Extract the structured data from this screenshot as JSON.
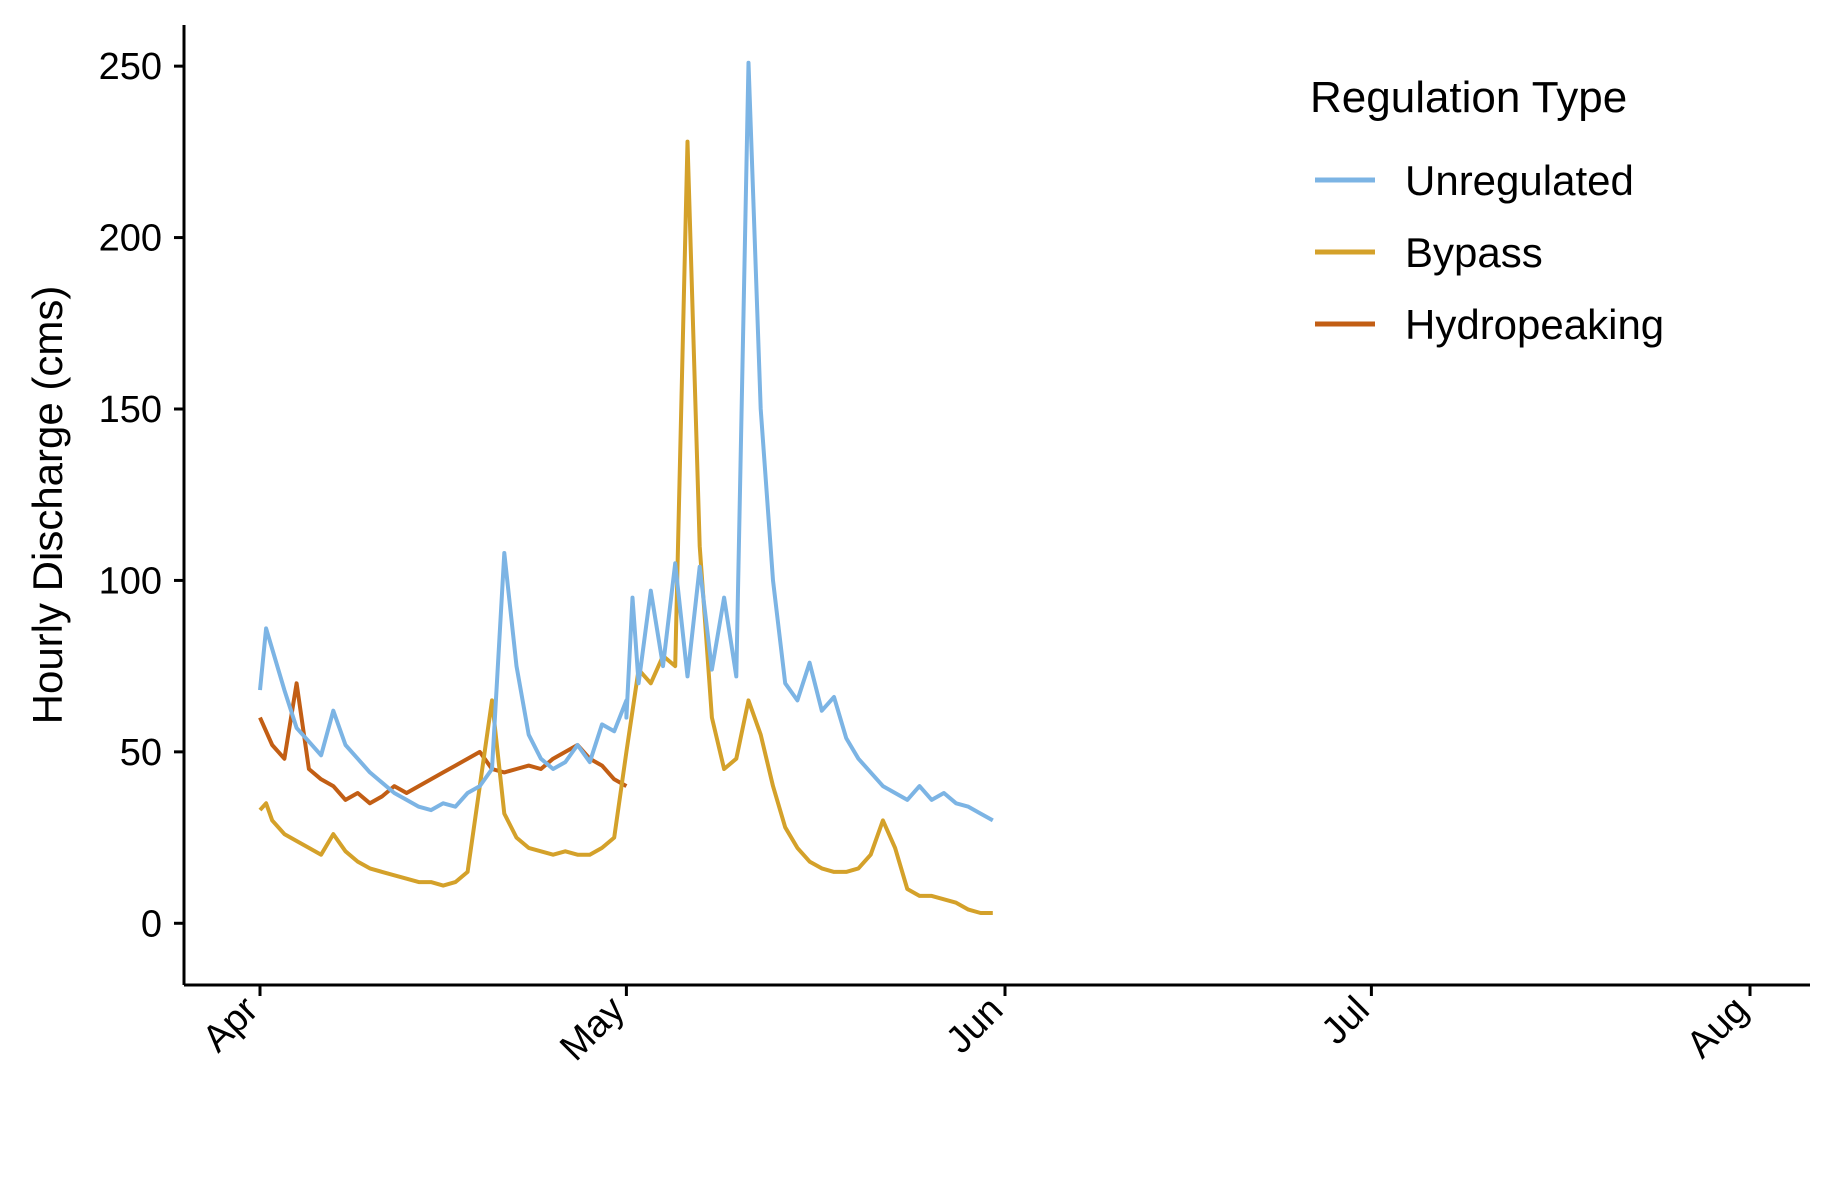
{
  "chart_data": {
    "type": "line",
    "title": "",
    "xlabel": "",
    "ylabel": "Hourly Discharge (cms)",
    "xlim": [
      "2019-04-01",
      "2019-08-01"
    ],
    "ylim": [
      -18,
      262
    ],
    "x_ticks": [
      {
        "date": "2019-04-01",
        "label": "Apr"
      },
      {
        "date": "2019-05-01",
        "label": "May"
      },
      {
        "date": "2019-06-01",
        "label": "Jun"
      },
      {
        "date": "2019-07-01",
        "label": "Jul"
      },
      {
        "date": "2019-08-01",
        "label": "Aug"
      }
    ],
    "y_ticks": [
      0,
      50,
      100,
      150,
      200,
      250
    ],
    "grid": false,
    "legend": {
      "title": "Regulation Type",
      "position": "top-right"
    },
    "series": [
      {
        "name": "Unregulated",
        "color": "#7cb4e4",
        "points": [
          [
            "2019-04-01",
            68
          ],
          [
            "2019-04-01 12:00",
            86
          ],
          [
            "2019-04-02",
            80
          ],
          [
            "2019-04-03",
            68
          ],
          [
            "2019-04-04",
            57
          ],
          [
            "2019-04-05",
            53
          ],
          [
            "2019-04-06",
            49
          ],
          [
            "2019-04-07",
            62
          ],
          [
            "2019-04-08",
            52
          ],
          [
            "2019-04-09",
            48
          ],
          [
            "2019-04-10",
            44
          ],
          [
            "2019-04-11",
            41
          ],
          [
            "2019-04-12",
            38
          ],
          [
            "2019-04-13",
            36
          ],
          [
            "2019-04-14",
            34
          ],
          [
            "2019-04-15",
            33
          ],
          [
            "2019-04-16",
            35
          ],
          [
            "2019-04-17",
            34
          ],
          [
            "2019-04-18",
            38
          ],
          [
            "2019-04-19",
            40
          ],
          [
            "2019-04-20",
            45
          ],
          [
            "2019-04-21",
            108
          ],
          [
            "2019-04-22",
            75
          ],
          [
            "2019-04-23",
            55
          ],
          [
            "2019-04-24",
            48
          ],
          [
            "2019-04-25",
            45
          ],
          [
            "2019-04-26",
            47
          ],
          [
            "2019-04-27",
            52
          ],
          [
            "2019-04-28",
            47
          ],
          [
            "2019-04-29",
            58
          ],
          [
            "2019-04-30",
            56
          ],
          [
            "2019-05-01",
            65
          ],
          [
            "2019-04-31",
            60
          ],
          [
            "2019-05-01 12:00",
            95
          ],
          [
            "2019-05-02",
            70
          ],
          [
            "2019-05-03",
            97
          ],
          [
            "2019-05-04",
            75
          ],
          [
            "2019-05-05",
            105
          ],
          [
            "2019-05-06",
            72
          ],
          [
            "2019-05-07",
            104
          ],
          [
            "2019-05-08",
            74
          ],
          [
            "2019-05-09",
            95
          ],
          [
            "2019-05-10",
            72
          ],
          [
            "2019-05-11",
            251
          ],
          [
            "2019-05-12",
            150
          ],
          [
            "2019-05-13",
            100
          ],
          [
            "2019-05-14",
            70
          ],
          [
            "2019-05-15",
            65
          ],
          [
            "2019-05-16",
            76
          ],
          [
            "2019-05-17",
            62
          ],
          [
            "2019-05-18",
            66
          ],
          [
            "2019-05-19",
            54
          ],
          [
            "2019-05-20",
            48
          ],
          [
            "2019-05-21",
            44
          ],
          [
            "2019-05-22",
            40
          ],
          [
            "2019-05-23",
            38
          ],
          [
            "2019-05-24",
            36
          ],
          [
            "2019-05-25",
            40
          ],
          [
            "2019-05-26",
            36
          ],
          [
            "2019-05-27",
            38
          ],
          [
            "2019-05-28",
            35
          ],
          [
            "2019-05-29",
            34
          ],
          [
            "2019-05-30",
            32
          ],
          [
            "2019-05-31",
            30
          ]
        ]
      },
      {
        "name": "Bypass",
        "color": "#d4a12a",
        "points": [
          [
            "2019-04-01",
            33
          ],
          [
            "2019-04-01 12:00",
            35
          ],
          [
            "2019-04-02",
            30
          ],
          [
            "2019-04-03",
            26
          ],
          [
            "2019-04-04",
            24
          ],
          [
            "2019-04-05",
            22
          ],
          [
            "2019-04-06",
            20
          ],
          [
            "2019-04-07",
            26
          ],
          [
            "2019-04-08",
            21
          ],
          [
            "2019-04-09",
            18
          ],
          [
            "2019-04-10",
            16
          ],
          [
            "2019-04-11",
            15
          ],
          [
            "2019-04-12",
            14
          ],
          [
            "2019-04-13",
            13
          ],
          [
            "2019-04-14",
            12
          ],
          [
            "2019-04-15",
            12
          ],
          [
            "2019-04-16",
            11
          ],
          [
            "2019-04-17",
            12
          ],
          [
            "2019-04-18",
            15
          ],
          [
            "2019-04-19",
            40
          ],
          [
            "2019-04-20",
            65
          ],
          [
            "2019-04-21",
            32
          ],
          [
            "2019-04-22",
            25
          ],
          [
            "2019-04-23",
            22
          ],
          [
            "2019-04-24",
            21
          ],
          [
            "2019-04-25",
            20
          ],
          [
            "2019-04-26",
            21
          ],
          [
            "2019-04-27",
            20
          ],
          [
            "2019-04-28",
            20
          ],
          [
            "2019-04-29",
            22
          ],
          [
            "2019-04-30",
            25
          ],
          [
            "2019-05-01",
            50
          ],
          [
            "2019-05-02",
            74
          ],
          [
            "2019-05-03",
            70
          ],
          [
            "2019-05-04",
            78
          ],
          [
            "2019-05-05",
            75
          ],
          [
            "2019-05-06",
            228
          ],
          [
            "2019-05-07",
            110
          ],
          [
            "2019-05-08",
            60
          ],
          [
            "2019-05-09",
            45
          ],
          [
            "2019-05-10",
            48
          ],
          [
            "2019-05-11",
            65
          ],
          [
            "2019-05-12",
            55
          ],
          [
            "2019-05-13",
            40
          ],
          [
            "2019-05-14",
            28
          ],
          [
            "2019-05-15",
            22
          ],
          [
            "2019-05-16",
            18
          ],
          [
            "2019-05-17",
            16
          ],
          [
            "2019-05-18",
            15
          ],
          [
            "2019-05-19",
            15
          ],
          [
            "2019-05-20",
            16
          ],
          [
            "2019-05-21",
            20
          ],
          [
            "2019-05-22",
            30
          ],
          [
            "2019-05-23",
            22
          ],
          [
            "2019-05-24",
            10
          ],
          [
            "2019-05-25",
            8
          ],
          [
            "2019-05-26",
            8
          ],
          [
            "2019-05-27",
            7
          ],
          [
            "2019-05-28",
            6
          ],
          [
            "2019-05-29",
            4
          ],
          [
            "2019-05-30",
            3
          ],
          [
            "2019-05-31",
            3
          ]
        ]
      },
      {
        "name": "Hydropeaking",
        "color": "#c25e14",
        "points": [
          [
            "2019-04-01",
            60
          ],
          [
            "2019-04-02",
            52
          ],
          [
            "2019-04-03",
            48
          ],
          [
            "2019-04-04",
            70
          ],
          [
            "2019-04-05",
            45
          ],
          [
            "2019-04-06",
            42
          ],
          [
            "2019-04-07",
            40
          ],
          [
            "2019-04-08",
            36
          ],
          [
            "2019-04-09",
            38
          ],
          [
            "2019-04-10",
            35
          ],
          [
            "2019-04-11",
            37
          ],
          [
            "2019-04-12",
            40
          ],
          [
            "2019-04-13",
            38
          ],
          [
            "2019-04-14",
            40
          ],
          [
            "2019-04-15",
            42
          ],
          [
            "2019-04-16",
            44
          ],
          [
            "2019-04-17",
            46
          ],
          [
            "2019-04-18",
            48
          ],
          [
            "2019-04-19",
            50
          ],
          [
            "2019-04-20",
            45
          ],
          [
            "2019-04-21",
            44
          ],
          [
            "2019-04-22",
            45
          ],
          [
            "2019-04-23",
            46
          ],
          [
            "2019-04-24",
            45
          ],
          [
            "2019-04-25",
            48
          ],
          [
            "2019-04-26",
            50
          ],
          [
            "2019-04-27",
            52
          ],
          [
            "2019-04-28",
            48
          ],
          [
            "2019-04-29",
            46
          ],
          [
            "2019-04-30",
            42
          ],
          [
            "2019-05-01",
            40
          ]
        ]
      }
    ]
  }
}
